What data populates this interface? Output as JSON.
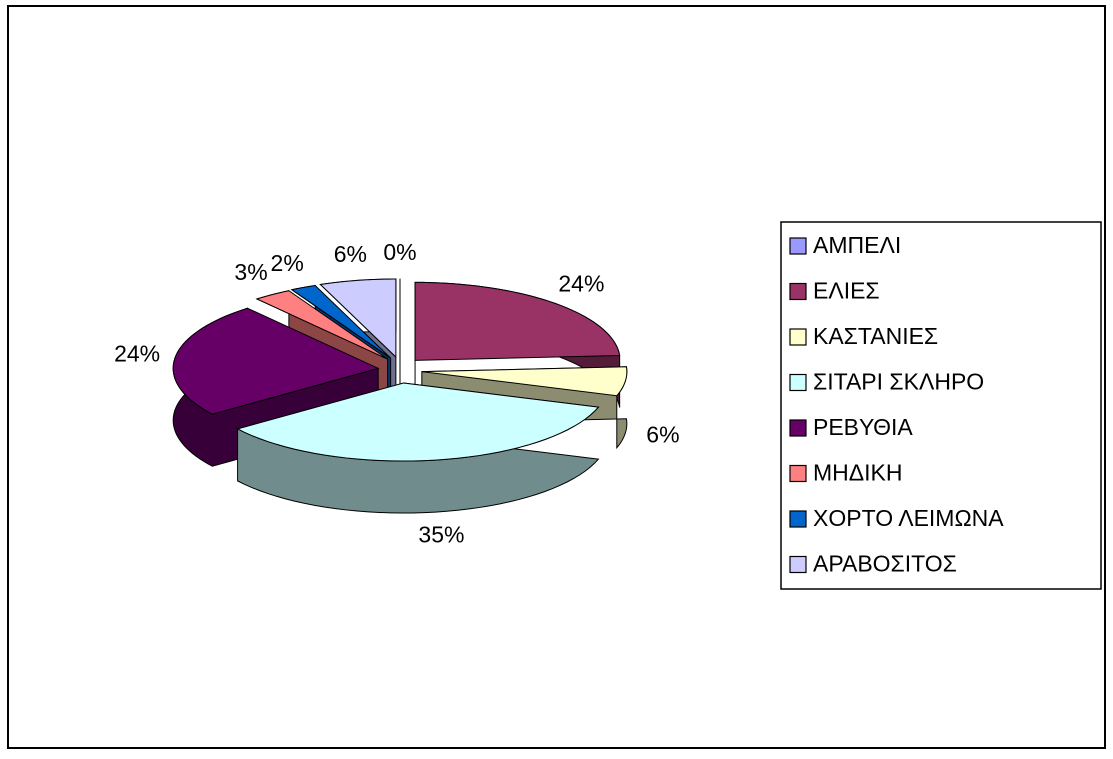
{
  "chart_data": {
    "type": "pie",
    "categories": [
      "ΑΜΠΕΛΙ",
      "ΕΛΙΕΣ",
      "ΚΑΣΤΑΝΙΕΣ",
      "ΣΙΤΑΡΙ ΣΚΛΗΡΟ",
      "ΡΕΒΥΘΙΑ",
      "ΜΗΔΙΚΗ",
      "ΧΟΡΤΟ ΛΕΙΜΩΝΑ",
      "ΑΡΑΒΟΣΙΤΟΣ"
    ],
    "values": [
      0,
      24,
      6,
      35,
      24,
      3,
      2,
      6
    ],
    "value_labels": [
      "0%",
      "24%",
      "6%",
      "35%",
      "24%",
      "3%",
      "2%",
      "6%"
    ],
    "colors": [
      "#9999ff",
      "#993366",
      "#ffffcc",
      "#ccffff",
      "#660066",
      "#ff8080",
      "#0066cc",
      "#ccccff"
    ],
    "legend": "right"
  }
}
